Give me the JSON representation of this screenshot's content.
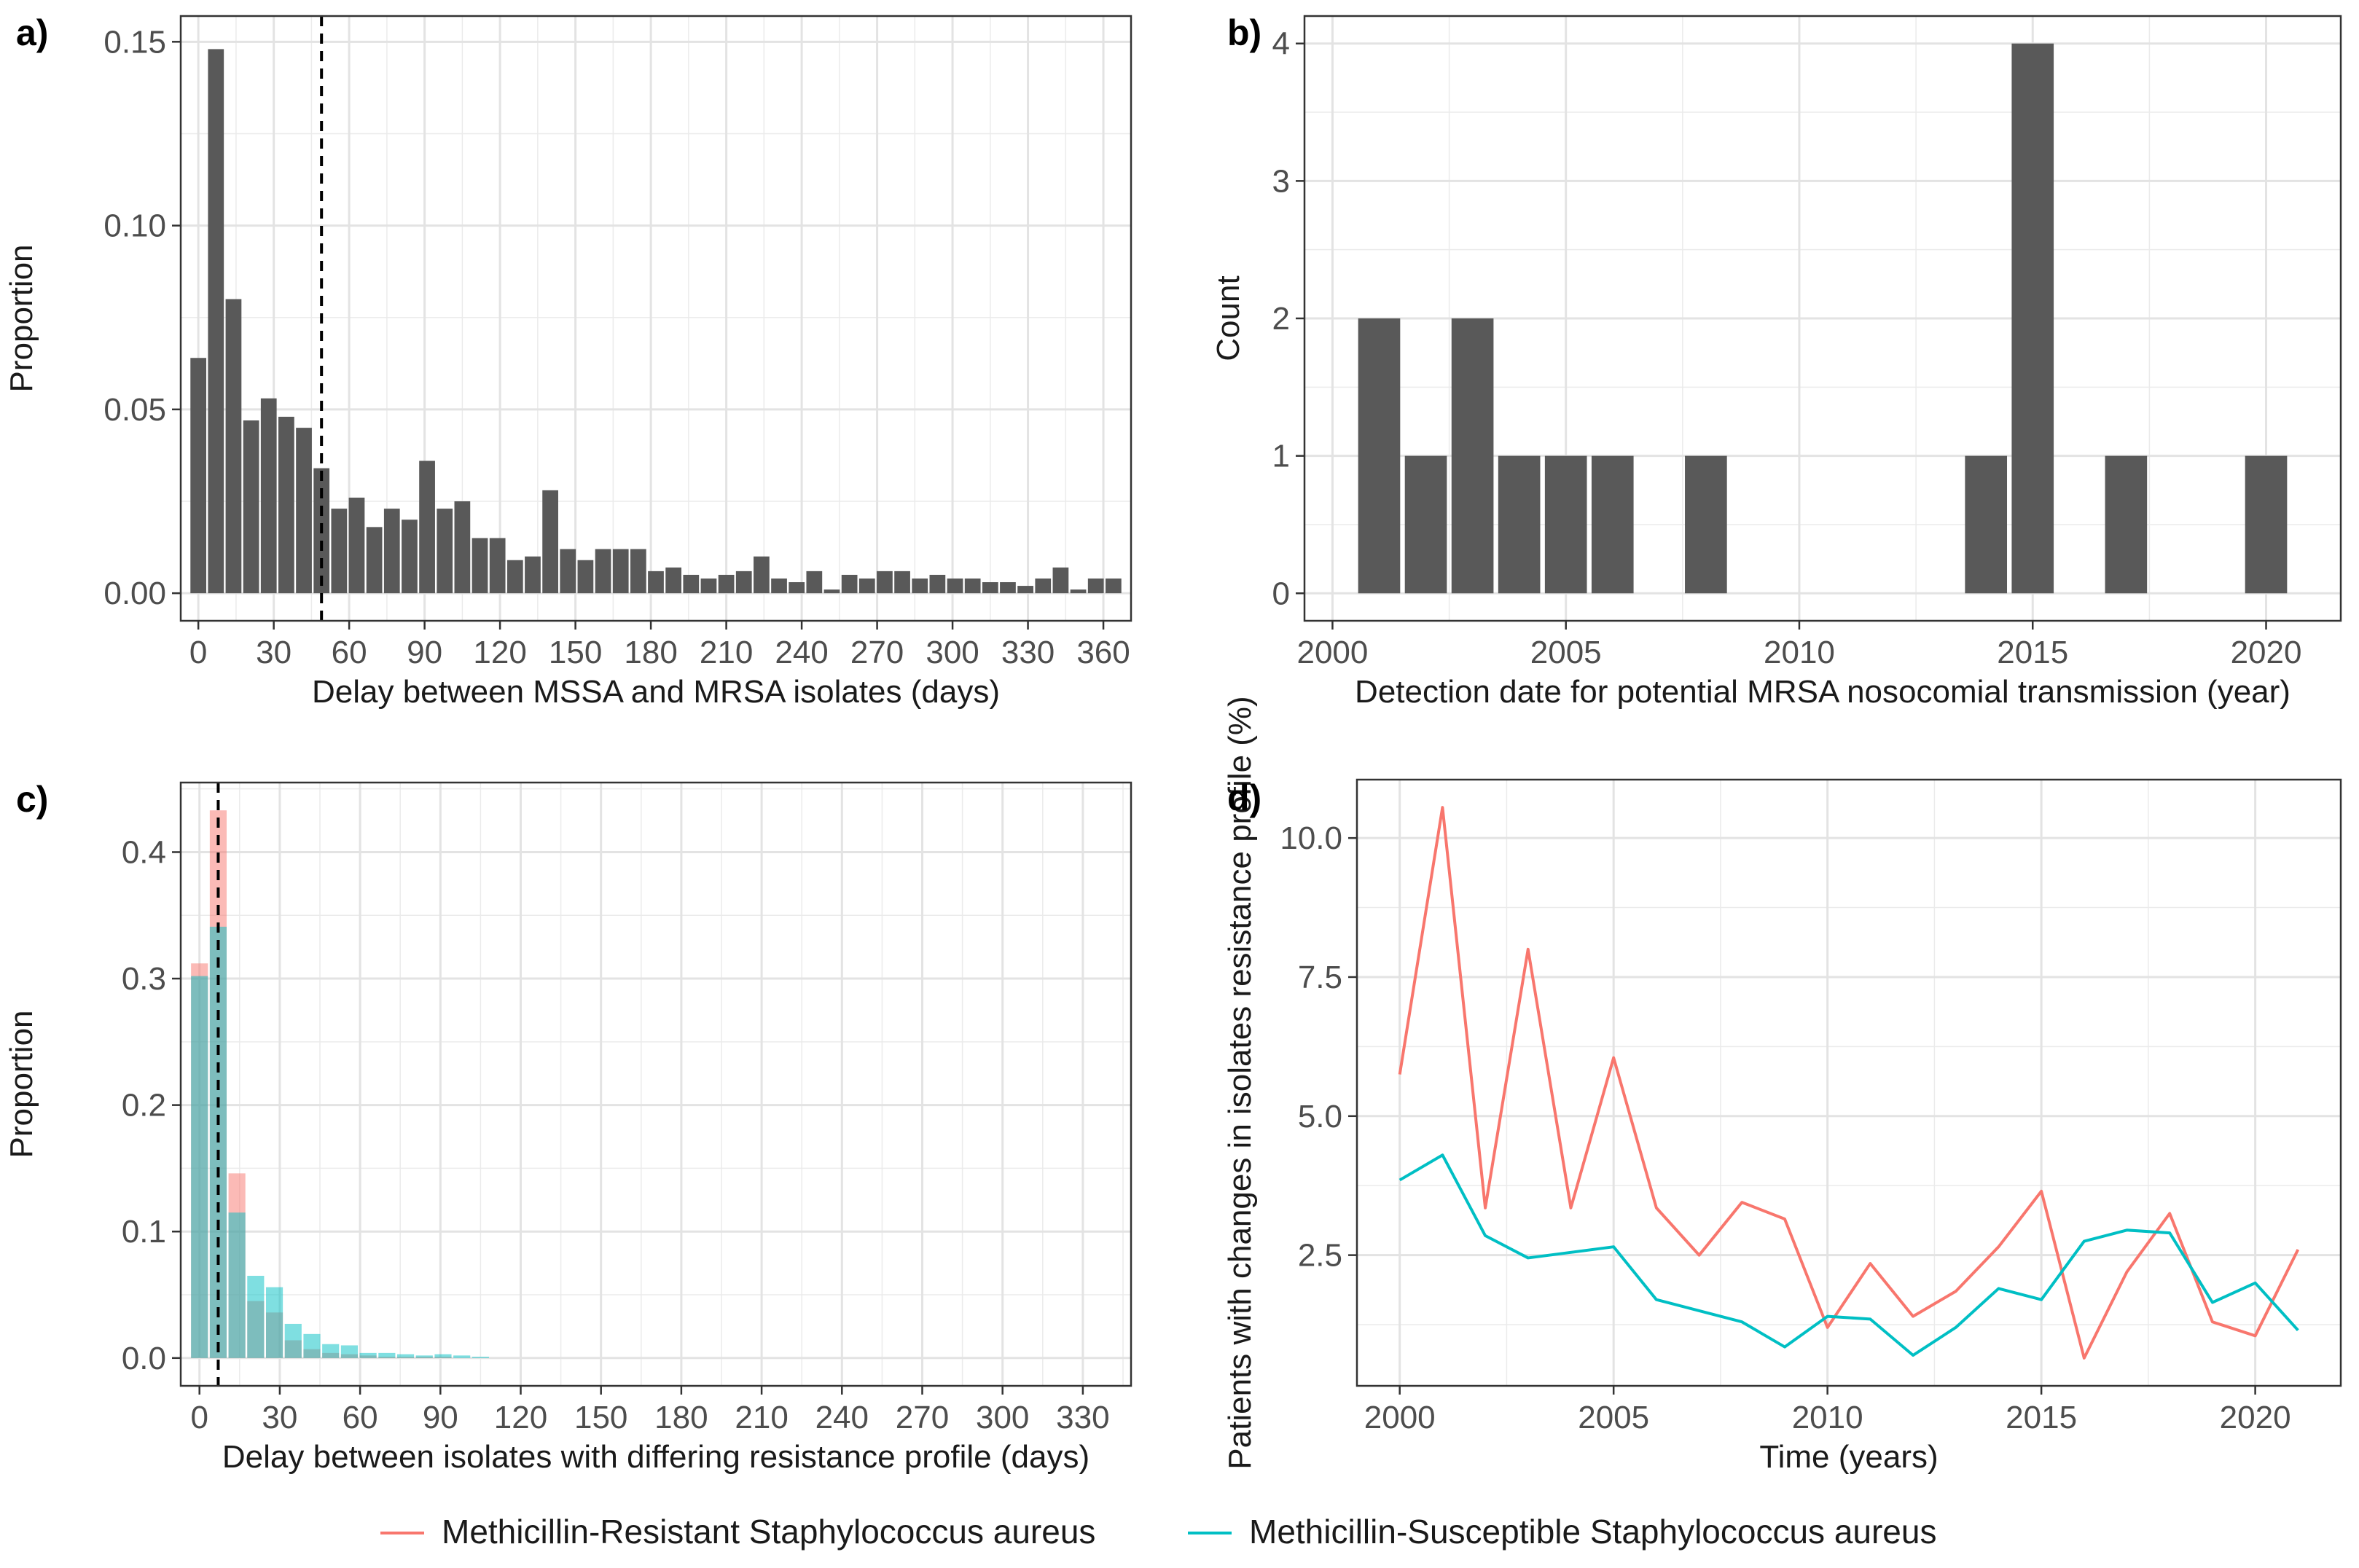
{
  "legend": {
    "items": [
      {
        "label": "Methicillin-Resistant Staphylococcus aureus",
        "color": "#F8766D"
      },
      {
        "label": "Methicillin-Susceptible Staphylococcus aureus",
        "color": "#00BFC4"
      }
    ]
  },
  "chart_data": [
    {
      "panel": "a)",
      "type": "bar",
      "xlabel": "Delay between MSSA and MRSA isolates (days)",
      "ylabel": "Proportion",
      "xlim": [
        -7,
        371
      ],
      "ylim": [
        -0.0075,
        0.157
      ],
      "xticks": [
        0,
        30,
        60,
        90,
        120,
        150,
        180,
        210,
        240,
        270,
        300,
        330,
        360
      ],
      "xtick_labels": [
        "0",
        "30",
        "60",
        "90",
        "120",
        "150",
        "180",
        "210",
        "240",
        "270",
        "300",
        "330",
        "360"
      ],
      "yticks": [
        0,
        0.05,
        0.1,
        0.15
      ],
      "ytick_labels": [
        "0.00",
        "0.05",
        "0.10",
        "0.15"
      ],
      "bin_width": 7,
      "bar_color": "#595959",
      "x": [
        0,
        7,
        14,
        21,
        28,
        35,
        42,
        49,
        56,
        63,
        70,
        77,
        84,
        91,
        98,
        105,
        112,
        119,
        126,
        133,
        140,
        147,
        154,
        161,
        168,
        175,
        182,
        189,
        196,
        203,
        210,
        217,
        224,
        231,
        238,
        245,
        252,
        259,
        266,
        273,
        280,
        287,
        294,
        301,
        308,
        315,
        322,
        329,
        336,
        343,
        350,
        357,
        364
      ],
      "values": [
        0.064,
        0.148,
        0.08,
        0.047,
        0.053,
        0.048,
        0.045,
        0.034,
        0.023,
        0.026,
        0.018,
        0.023,
        0.02,
        0.036,
        0.023,
        0.025,
        0.015,
        0.015,
        0.009,
        0.01,
        0.028,
        0.012,
        0.009,
        0.012,
        0.012,
        0.012,
        0.006,
        0.007,
        0.005,
        0.004,
        0.005,
        0.006,
        0.01,
        0.004,
        0.003,
        0.006,
        0.001,
        0.005,
        0.004,
        0.006,
        0.006,
        0.004,
        0.005,
        0.004,
        0.004,
        0.003,
        0.003,
        0.002,
        0.004,
        0.007,
        0.001,
        0.004,
        0.004
      ],
      "vline": 49,
      "grid": true
    },
    {
      "panel": "b)",
      "type": "bar",
      "xlabel": "Detection date for potential MRSA nosocomial transmission (year)",
      "ylabel": "Count",
      "xlim": [
        1999.4,
        2021.6
      ],
      "ylim": [
        -0.2,
        4.2
      ],
      "xticks": [
        2000,
        2005,
        2010,
        2015,
        2020
      ],
      "xtick_labels": [
        "2000",
        "2005",
        "2010",
        "2015",
        "2020"
      ],
      "yticks": [
        0,
        1,
        2,
        3,
        4
      ],
      "ytick_labels": [
        "0",
        "1",
        "2",
        "3",
        "4"
      ],
      "bar_color": "#595959",
      "x": [
        2001,
        2002,
        2003,
        2004,
        2005,
        2006,
        2008,
        2014,
        2015,
        2017,
        2020
      ],
      "values": [
        2,
        1,
        2,
        1,
        1,
        1,
        1,
        1,
        4,
        1,
        1
      ],
      "grid": true
    },
    {
      "panel": "c)",
      "type": "bar",
      "xlabel": "Delay between isolates with differing resistance profile (days)",
      "ylabel": "Proportion",
      "xlim": [
        -7,
        348
      ],
      "ylim": [
        -0.022,
        0.455
      ],
      "xticks": [
        0,
        30,
        60,
        90,
        120,
        150,
        180,
        210,
        240,
        270,
        300,
        330
      ],
      "xtick_labels": [
        "0",
        "30",
        "60",
        "90",
        "120",
        "150",
        "180",
        "210",
        "240",
        "270",
        "300",
        "330"
      ],
      "yticks": [
        0,
        0.1,
        0.2,
        0.3,
        0.4
      ],
      "ytick_labels": [
        "0.0",
        "0.1",
        "0.2",
        "0.3",
        "0.4"
      ],
      "bin_width": 7,
      "x": [
        0,
        7,
        14,
        21,
        28,
        35,
        42,
        49,
        56,
        63,
        70,
        77,
        84,
        91,
        98,
        105
      ],
      "series": [
        {
          "name": "Methicillin-Resistant Staphylococcus aureus",
          "color": "#F8766D",
          "values": [
            0.312,
            0.433,
            0.146,
            0.045,
            0.036,
            0.014,
            0.007,
            0.004,
            0.003,
            0.002,
            0.001,
            0.001,
            0.001,
            0.001,
            0.0,
            0.0
          ]
        },
        {
          "name": "Methicillin-Susceptible Staphylococcus aureus",
          "color": "#00BFC4",
          "values": [
            0.302,
            0.341,
            0.115,
            0.065,
            0.056,
            0.027,
            0.019,
            0.011,
            0.01,
            0.004,
            0.004,
            0.003,
            0.002,
            0.003,
            0.002,
            0.001
          ]
        }
      ],
      "vline": 7,
      "grid": true
    },
    {
      "panel": "d)",
      "type": "line",
      "xlabel": "Time (years)",
      "ylabel": "Patients with changes in isolates resistance profile (%)",
      "xlim": [
        1999.0,
        2022.0
      ],
      "ylim": [
        0.15,
        11.05
      ],
      "xticks": [
        2000,
        2005,
        2010,
        2015,
        2020
      ],
      "xtick_labels": [
        "2000",
        "2005",
        "2010",
        "2015",
        "2020"
      ],
      "yticks": [
        2.5,
        5.0,
        7.5,
        10.0
      ],
      "ytick_labels": [
        "2.5",
        "5.0",
        "7.5",
        "10.0"
      ],
      "x": [
        2000,
        2001,
        2002,
        2003,
        2004,
        2005,
        2006,
        2007,
        2008,
        2009,
        2010,
        2011,
        2012,
        2013,
        2014,
        2015,
        2016,
        2017,
        2018,
        2019,
        2020,
        2021
      ],
      "series": [
        {
          "name": "Methicillin-Resistant Staphylococcus aureus",
          "color": "#F8766D",
          "values": [
            5.75,
            10.55,
            3.35,
            8.0,
            3.35,
            6.05,
            3.35,
            2.5,
            3.45,
            3.15,
            1.2,
            2.35,
            1.4,
            1.85,
            2.65,
            3.65,
            0.65,
            2.2,
            3.25,
            1.3,
            1.05,
            2.6
          ]
        },
        {
          "name": "Methicillin-Susceptible Staphylococcus aureus",
          "color": "#00BFC4",
          "values": [
            3.85,
            4.3,
            2.85,
            2.45,
            2.55,
            2.65,
            1.7,
            1.5,
            1.3,
            0.85,
            1.4,
            1.35,
            0.7,
            1.2,
            1.9,
            1.7,
            2.75,
            2.95,
            2.9,
            1.65,
            2.0,
            1.15
          ]
        }
      ],
      "grid": true
    }
  ]
}
